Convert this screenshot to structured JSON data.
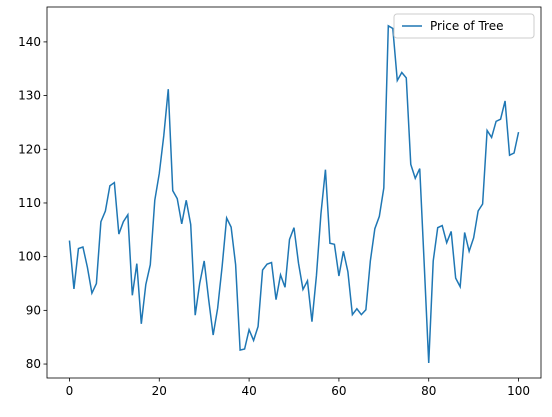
{
  "chart_data": {
    "type": "line",
    "x": [
      0,
      1,
      2,
      3,
      4,
      5,
      6,
      7,
      8,
      9,
      10,
      11,
      12,
      13,
      14,
      15,
      16,
      17,
      18,
      19,
      20,
      21,
      22,
      23,
      24,
      25,
      26,
      27,
      28,
      29,
      30,
      31,
      32,
      33,
      34,
      35,
      36,
      37,
      38,
      39,
      40,
      41,
      42,
      43,
      44,
      45,
      46,
      47,
      48,
      49,
      50,
      51,
      52,
      53,
      54,
      55,
      56,
      57,
      58,
      59,
      60,
      61,
      62,
      63,
      64,
      65,
      66,
      67,
      68,
      69,
      70,
      71,
      72,
      73,
      74,
      75,
      76,
      77,
      78,
      79,
      80,
      81,
      82,
      83,
      84,
      85,
      86,
      87,
      88,
      89,
      90,
      91,
      92,
      93,
      94,
      95,
      96,
      97,
      98,
      99,
      100
    ],
    "series": [
      {
        "name": "Price of Tree",
        "color": "#1f77b4",
        "values": [
          103,
          94,
          101.5,
          101.8,
          98,
          93.2,
          95,
          106.5,
          108.5,
          113.2,
          113.8,
          104.2,
          106.5,
          107.8,
          92.8,
          98.7,
          87.5,
          94.8,
          98.5,
          110.5,
          115.5,
          122.5,
          131.2,
          112.3,
          110.8,
          106.1,
          110.5,
          106,
          89.1,
          95,
          99.2,
          92,
          85.4,
          90.4,
          98.2,
          107.2,
          105.5,
          98.5,
          82.6,
          82.8,
          86.4,
          84.4,
          87,
          97.5,
          98.6,
          98.9,
          92,
          96.6,
          94.3,
          103.2,
          105.4,
          98.8,
          93.9,
          95.5,
          87.9,
          96.5,
          108,
          116.2,
          102.5,
          102.3,
          96.4,
          101,
          97.2,
          89.2,
          90.3,
          89.2,
          90.1,
          99.2,
          105.2,
          107.5,
          112.8,
          143,
          142.5,
          132.8,
          134.3,
          133.3,
          117.2,
          114.6,
          116.4,
          98.5,
          80.2,
          99.2,
          105.4,
          105.8,
          102.6,
          104.7,
          96,
          94.4,
          104.5,
          101,
          103.5,
          108.5,
          109.8,
          123.5,
          122.2,
          125.2,
          125.6,
          129,
          118.9,
          119.3,
          123.2
        ]
      }
    ],
    "xlim": [
      -5,
      105
    ],
    "ylim": [
      77.4,
      146.5
    ],
    "xticks": [
      0,
      20,
      40,
      60,
      80,
      100
    ],
    "yticks": [
      80,
      90,
      100,
      110,
      120,
      130,
      140
    ],
    "legend": "upper right"
  }
}
